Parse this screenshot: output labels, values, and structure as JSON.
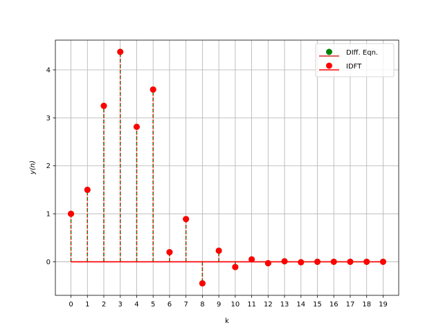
{
  "chart_data": {
    "type": "scatter",
    "subtype": "stem",
    "title": "",
    "xlabel": "k",
    "ylabel": "y(n)",
    "x": [
      0,
      1,
      2,
      3,
      4,
      5,
      6,
      7,
      8,
      9,
      10,
      11,
      12,
      13,
      14,
      15,
      16,
      17,
      18,
      19
    ],
    "xlim": [
      -0.95,
      19.95
    ],
    "ylim": [
      -0.7,
      4.62
    ],
    "xticks": [
      0,
      1,
      2,
      3,
      4,
      5,
      6,
      7,
      8,
      9,
      10,
      11,
      12,
      13,
      14,
      15,
      16,
      17,
      18,
      19
    ],
    "yticks": [
      0,
      1,
      2,
      3,
      4
    ],
    "grid": true,
    "legend_position": "top-right",
    "series": [
      {
        "name": "DIff. Eqn.",
        "marker_color": "#008000",
        "stem_color": "#008000",
        "stem_style": "dashed",
        "baseline_color": "#d62728",
        "values": [
          1.0,
          1.5,
          3.25,
          4.375,
          2.8125,
          3.59,
          0.2,
          0.89,
          -0.45,
          0.23,
          -0.11,
          0.05,
          -0.03,
          0.01,
          -0.01,
          0.0,
          0.0,
          0.0,
          0.0,
          0.0
        ]
      },
      {
        "name": "IDFT",
        "marker_color": "#ff0000",
        "stem_color": "#ff0000",
        "stem_style": "dotted",
        "baseline_color": "#ff0000",
        "values": [
          1.0,
          1.5,
          3.25,
          4.375,
          2.8125,
          3.59,
          0.2,
          0.89,
          -0.45,
          0.23,
          -0.11,
          0.05,
          -0.03,
          0.01,
          -0.01,
          0.0,
          0.0,
          0.0,
          0.0,
          0.0
        ]
      }
    ]
  }
}
